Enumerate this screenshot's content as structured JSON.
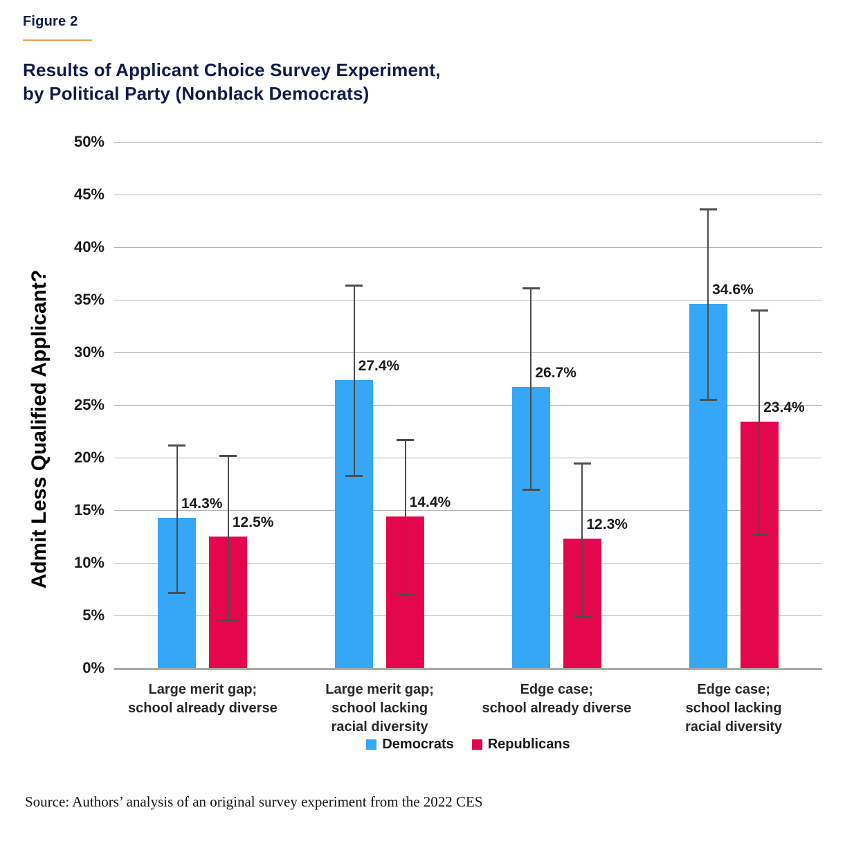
{
  "figure": {
    "label": "Figure 2",
    "title": "Results of Applicant Choice Survey Experiment,\nby Political Party (Nonblack Democrats)",
    "source": "Source: Authors’ analysis of an original survey experiment from the 2022 CES"
  },
  "colors": {
    "democrat_blue": "#36A6F7",
    "republican_red": "#E4074E",
    "title_navy": "#111B4A",
    "accent_orange": "#E9A24C",
    "gridline_gray": "#B5B5B5",
    "axis_gray": "#A9A9A9",
    "error_bar_gray": "#4D4D4D"
  },
  "chart_data": {
    "type": "bar",
    "title": "Results of Applicant Choice Survey Experiment, by Political Party (Nonblack Democrats)",
    "xlabel": "",
    "ylabel": "Admit Less Qualified Applicant?",
    "ylim": [
      0,
      50
    ],
    "ytick_labels": [
      "0%",
      "5%",
      "10%",
      "15%",
      "20%",
      "25%",
      "30%",
      "35%",
      "40%",
      "45%",
      "50%"
    ],
    "ytick_values": [
      0,
      5,
      10,
      15,
      20,
      25,
      30,
      35,
      40,
      45,
      50
    ],
    "grid": true,
    "legend_position": "bottom",
    "legend": [
      "Democrats",
      "Republicans"
    ],
    "categories": [
      "Large merit gap;\nschool already diverse",
      "Large merit gap;\nschool lacking\nracial diversity",
      "Edge case;\nschool already diverse",
      "Edge case;\nschool lacking\nracial diversity"
    ],
    "series": [
      {
        "name": "Democrats",
        "color": "#36A6F7",
        "values": [
          14.3,
          27.4,
          26.7,
          34.6
        ],
        "labels": [
          "14.3%",
          "27.4%",
          "26.7%",
          "34.6%"
        ],
        "error_low": [
          7.2,
          18.3,
          17.0,
          25.5
        ],
        "error_high": [
          21.2,
          36.4,
          36.1,
          43.6
        ]
      },
      {
        "name": "Republicans",
        "color": "#E4074E",
        "values": [
          12.5,
          14.4,
          12.3,
          23.4
        ],
        "labels": [
          "12.5%",
          "14.4%",
          "12.3%",
          "23.4%"
        ],
        "error_low": [
          4.6,
          7.0,
          4.9,
          12.7
        ],
        "error_high": [
          20.2,
          21.7,
          19.5,
          34.0
        ]
      }
    ]
  }
}
